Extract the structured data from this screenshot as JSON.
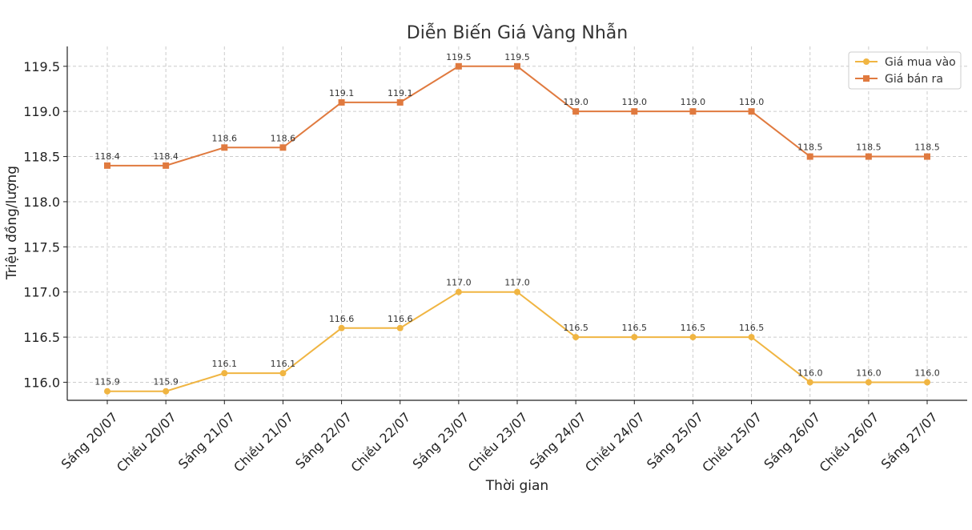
{
  "chart_data": {
    "type": "line",
    "title": "Diễn Biến Giá Vàng Nhẫn",
    "xlabel": "Thời gian",
    "ylabel": "Triệu đồng/lượng",
    "categories": [
      "Sáng 20/07",
      "Chiều 20/07",
      "Sáng 21/07",
      "Chiều 21/07",
      "Sáng 22/07",
      "Chiều 22/07",
      "Sáng 23/07",
      "Chiều 23/07",
      "Sáng 24/07",
      "Chiều 24/07",
      "Sáng 25/07",
      "Chiều 25/07",
      "Sáng 26/07",
      "Chiều 26/07",
      "Sáng 27/07"
    ],
    "ylim": [
      115.8,
      119.72
    ],
    "yticks": [
      "116.0",
      "116.5",
      "117.0",
      "117.5",
      "118.0",
      "118.5",
      "119.0",
      "119.5"
    ],
    "grid": true,
    "legend_position": "top-right",
    "series": [
      {
        "name": "Giá mua vào",
        "color": "#F0B542",
        "marker": "circle",
        "values": [
          115.9,
          115.9,
          116.1,
          116.1,
          116.6,
          116.6,
          117.0,
          117.0,
          116.5,
          116.5,
          116.5,
          116.5,
          116.0,
          116.0,
          116.0
        ],
        "labels": [
          "115.9",
          "115.9",
          "116.1",
          "116.1",
          "116.6",
          "116.6",
          "117.0",
          "117.0",
          "116.5",
          "116.5",
          "116.5",
          "116.5",
          "116.0",
          "116.0",
          "116.0"
        ]
      },
      {
        "name": "Giá bán ra",
        "color": "#E07A3F",
        "marker": "square",
        "values": [
          118.4,
          118.4,
          118.6,
          118.6,
          119.1,
          119.1,
          119.5,
          119.5,
          119.0,
          119.0,
          119.0,
          119.0,
          118.5,
          118.5,
          118.5
        ],
        "labels": [
          "118.4",
          "118.4",
          "118.6",
          "118.6",
          "119.1",
          "119.1",
          "119.5",
          "119.5",
          "119.0",
          "119.0",
          "119.0",
          "119.0",
          "118.5",
          "118.5",
          "118.5"
        ]
      }
    ]
  }
}
